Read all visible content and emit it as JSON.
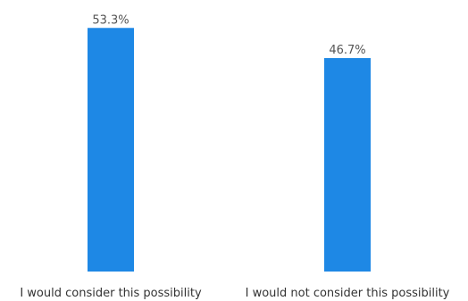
{
  "chart_data": {
    "type": "bar",
    "categories": [
      "I would consider this possibility",
      "I would not consider this possibility"
    ],
    "values": [
      53.3,
      46.7
    ],
    "value_labels": [
      "53.3%",
      "46.7%"
    ],
    "ylim": [
      0,
      55.5
    ],
    "grid": false,
    "legend": "none",
    "bar_color": "#1e88e5"
  }
}
